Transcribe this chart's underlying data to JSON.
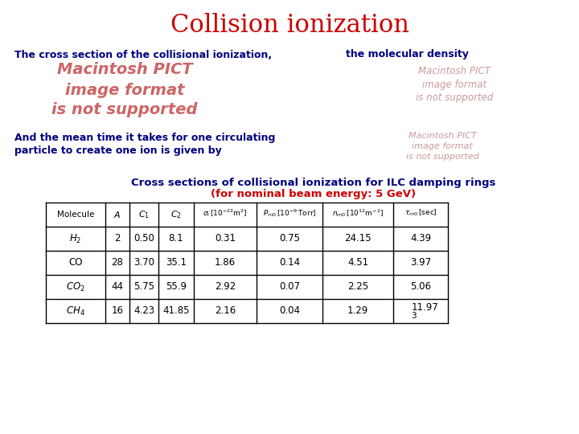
{
  "title": "Collision ionization",
  "title_color": "#cc0000",
  "title_fontsize": 22,
  "text_color": "#000080",
  "text1": "The cross section of the collisional ionization,",
  "text2": "the molecular density",
  "text3_line1": "And the mean time it takes for one circulating",
  "text3_line2": "particle to create one ion is given by",
  "pict_placeholder_large": "Macintosh PICT\nimage format\nis not supported",
  "pict_placeholder_small1": "Macintosh PICT\nimage format\nis not supported",
  "pict_placeholder_small2": "Macintosh PICT\nimage format\nis not supported",
  "pict_color_large": "#cc6666",
  "pict_color_small": "#cc9999",
  "table_title_line1": "Cross sections of collisional ionization for ILC damping rings",
  "table_title_line2": "(for nominal beam energy: 5 GeV)",
  "table_title_color_line1": "#000080",
  "table_title_color_line2": "#cc0000",
  "background_color": "#ffffff",
  "rows": [
    [
      "H2",
      "2",
      "0.50",
      "8.1",
      "0.31",
      "0.75",
      "24.15",
      "4.39"
    ],
    [
      "CO",
      "28",
      "3.70",
      "35.1",
      "1.86",
      "0.14",
      "4.51",
      "3.97"
    ],
    [
      "CO2",
      "44",
      "5.75",
      "55.9",
      "2.92",
      "0.07",
      "2.25",
      "5.06"
    ],
    [
      "CH4",
      "16",
      "4.23",
      "41.85",
      "2.16",
      "0.04",
      "1.29",
      "11.97"
    ]
  ]
}
